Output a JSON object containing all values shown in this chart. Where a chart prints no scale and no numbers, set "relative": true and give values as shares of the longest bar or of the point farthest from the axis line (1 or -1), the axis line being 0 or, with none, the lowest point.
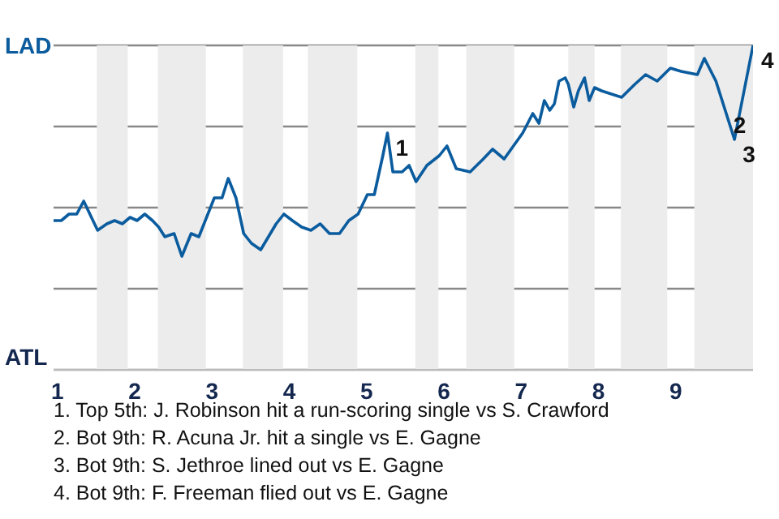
{
  "chart_data": {
    "type": "line",
    "relative": true,
    "grid": "y",
    "legend": false,
    "marker": "none",
    "line_style": "solid",
    "x": [
      0.95,
      1.05,
      1.15,
      1.25,
      1.34,
      1.44,
      1.52,
      1.64,
      1.74,
      1.84,
      1.94,
      2.03,
      2.13,
      2.23,
      2.31,
      2.39,
      2.51,
      2.61,
      2.73,
      2.83,
      2.93,
      3.03,
      3.13,
      3.21,
      3.31,
      3.41,
      3.51,
      3.63,
      3.73,
      3.83,
      3.93,
      4.04,
      4.16,
      4.28,
      4.4,
      4.52,
      4.65,
      4.77,
      4.89,
      5.01,
      5.1,
      5.21,
      5.27,
      5.34,
      5.46,
      5.55,
      5.64,
      5.78,
      5.94,
      6.04,
      6.16,
      6.34,
      6.51,
      6.63,
      6.78,
      7.02,
      7.15,
      7.23,
      7.3,
      7.37,
      7.43,
      7.49,
      7.57,
      7.61,
      7.68,
      7.74,
      7.82,
      7.88,
      7.95,
      8.04,
      8.3,
      8.47,
      8.61,
      8.76,
      8.93,
      9.07,
      9.28,
      9.37,
      9.52,
      9.64,
      9.76,
      10
    ],
    "series": [
      {
        "color": "#0b5c9e",
        "values": [
          0.46,
          0.46,
          0.48,
          0.48,
          0.52,
          0.47,
          0.43,
          0.45,
          0.46,
          0.45,
          0.47,
          0.46,
          0.48,
          0.46,
          0.44,
          0.41,
          0.42,
          0.35,
          0.42,
          0.41,
          0.47,
          0.53,
          0.53,
          0.59,
          0.53,
          0.42,
          0.39,
          0.37,
          0.41,
          0.45,
          0.48,
          0.46,
          0.44,
          0.43,
          0.45,
          0.42,
          0.42,
          0.46,
          0.48,
          0.54,
          0.54,
          0.66,
          0.73,
          0.61,
          0.61,
          0.63,
          0.58,
          0.63,
          0.66,
          0.69,
          0.62,
          0.61,
          0.65,
          0.68,
          0.65,
          0.73,
          0.79,
          0.76,
          0.83,
          0.8,
          0.82,
          0.89,
          0.9,
          0.88,
          0.81,
          0.86,
          0.9,
          0.83,
          0.87,
          0.86,
          0.84,
          0.88,
          0.91,
          0.89,
          0.93,
          0.92,
          0.91,
          0.96,
          0.89,
          0.8,
          0.71,
          1.0
        ]
      }
    ],
    "xlim": [
      0.95,
      10
    ],
    "xticks": [
      1,
      2,
      3,
      4,
      5,
      6,
      7,
      8,
      9
    ],
    "bands": [
      {
        "axis": "x",
        "from": 1.51,
        "to": 1.91,
        "color": "#ececec"
      },
      {
        "axis": "x",
        "from": 2.3,
        "to": 2.92,
        "color": "#ececec"
      },
      {
        "axis": "x",
        "from": 3.4,
        "to": 3.92,
        "color": "#ececec"
      },
      {
        "axis": "x",
        "from": 4.24,
        "to": 4.88,
        "color": "#ececec"
      },
      {
        "axis": "x",
        "from": 5.63,
        "to": 5.93,
        "color": "#ececec"
      },
      {
        "axis": "x",
        "from": 6.29,
        "to": 6.91,
        "color": "#ececec"
      },
      {
        "axis": "x",
        "from": 7.61,
        "to": 7.95,
        "color": "#ececec"
      },
      {
        "axis": "x",
        "from": 8.29,
        "to": 8.89,
        "color": "#ececec"
      },
      {
        "axis": "x",
        "from": 9.24,
        "to": 10,
        "color": "#ececec"
      }
    ],
    "annotations": [
      "LAD",
      "ATL",
      {
        "text": "1",
        "x": 5.27,
        "y": 0.73
      },
      {
        "text": "2",
        "x": 9.64,
        "y": 0.8
      },
      {
        "text": "3",
        "x": 9.76,
        "y": 0.71
      },
      {
        "text": "4",
        "x": 10,
        "y": 1.0
      },
      "1. Top 5th: J. Robinson hit a run-scoring single vs S. Crawford",
      "2. Bot 9th: R. Acuna Jr. hit a single vs E. Gagne",
      "3. Bot 9th: S. Jethroe lined out vs E. Gagne",
      "4. Bot 9th: F. Freeman flied out vs E. Gagne"
    ]
  }
}
